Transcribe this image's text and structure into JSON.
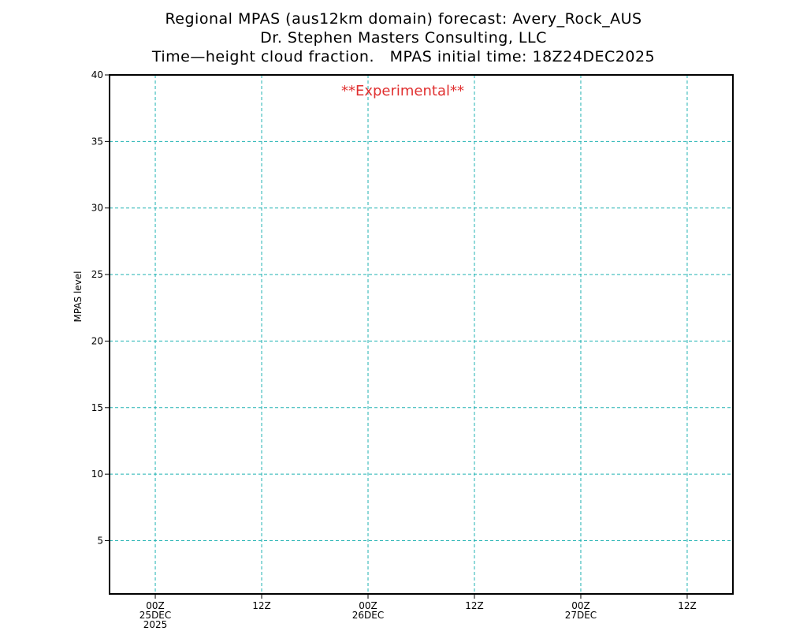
{
  "titles": [
    "Regional MPAS (aus12km domain) forecast: Avery_Rock_AUS",
    "Dr. Stephen Masters Consulting, LLC",
    "Time—height cloud fraction.   MPAS initial time: 18Z24DEC2025"
  ],
  "chart_data": {
    "type": "heatmap",
    "title": "Time—height cloud fraction.   MPAS initial time: 18Z24DEC2025",
    "xlabel": "",
    "ylabel": "MPAS level",
    "x_unit": "hour",
    "xlim": [
      -4.3,
      54.3
    ],
    "ylim": [
      1,
      40
    ],
    "yticks": [
      5,
      10,
      15,
      20,
      25,
      30,
      35,
      40
    ],
    "xticks": [
      {
        "x": 0,
        "lines": [
          "00Z",
          "25DEC",
          "2025"
        ]
      },
      {
        "x": 10,
        "lines": [
          "12Z"
        ]
      },
      {
        "x": 20,
        "lines": [
          "00Z",
          "26DEC"
        ]
      },
      {
        "x": 30,
        "lines": [
          "12Z"
        ]
      },
      {
        "x": 40,
        "lines": [
          "00Z",
          "27DEC"
        ]
      },
      {
        "x": 50,
        "lines": [
          "12Z"
        ]
      }
    ],
    "grid": true,
    "grid_color": "#20b2b2",
    "series": [],
    "annotation": {
      "text": "**Experimental**",
      "color": "#e03030"
    }
  }
}
